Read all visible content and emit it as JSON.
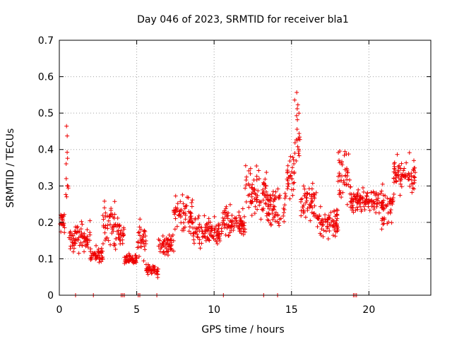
{
  "chart_data": {
    "type": "scatter",
    "title": "Day 046 of 2023, SRMTID for receiver bla1",
    "xlabel": "GPS time / hours",
    "ylabel": "SRMTID / TECUs",
    "xlim": [
      0,
      24
    ],
    "ylim": [
      0,
      0.7
    ],
    "x_ticks": [
      "0",
      "5",
      "10",
      "15",
      "20"
    ],
    "y_ticks": [
      "0",
      "0.1",
      "0.2",
      "0.3",
      "0.4",
      "0.5",
      "0.6",
      "0.7"
    ],
    "grid": true,
    "marker": "plus",
    "color": "#ee0000",
    "segments": [
      {
        "x0": 0.0,
        "x1": 0.4,
        "mean": 0.2,
        "spread": 0.06
      },
      {
        "x0": 0.4,
        "x1": 0.6,
        "mean": 0.35,
        "spread": 0.18
      },
      {
        "x0": 0.6,
        "x1": 1.0,
        "mean": 0.15,
        "spread": 0.05
      },
      {
        "x0": 1.0,
        "x1": 2.0,
        "mean": 0.16,
        "spread": 0.07
      },
      {
        "x0": 2.0,
        "x1": 2.8,
        "mean": 0.11,
        "spread": 0.04
      },
      {
        "x0": 2.8,
        "x1": 3.6,
        "mean": 0.2,
        "spread": 0.1
      },
      {
        "x0": 3.6,
        "x1": 4.2,
        "mean": 0.17,
        "spread": 0.07
      },
      {
        "x0": 4.2,
        "x1": 5.0,
        "mean": 0.1,
        "spread": 0.03
      },
      {
        "x0": 5.0,
        "x1": 5.6,
        "mean": 0.15,
        "spread": 0.08
      },
      {
        "x0": 5.6,
        "x1": 6.4,
        "mean": 0.07,
        "spread": 0.03
      },
      {
        "x0": 6.4,
        "x1": 7.4,
        "mean": 0.14,
        "spread": 0.05
      },
      {
        "x0": 7.4,
        "x1": 8.6,
        "mean": 0.22,
        "spread": 0.09
      },
      {
        "x0": 8.6,
        "x1": 10.4,
        "mean": 0.17,
        "spread": 0.07
      },
      {
        "x0": 10.4,
        "x1": 12.0,
        "mean": 0.2,
        "spread": 0.07
      },
      {
        "x0": 12.0,
        "x1": 13.4,
        "mean": 0.28,
        "spread": 0.11
      },
      {
        "x0": 13.4,
        "x1": 14.6,
        "mean": 0.24,
        "spread": 0.09
      },
      {
        "x0": 14.6,
        "x1": 15.2,
        "mean": 0.33,
        "spread": 0.1
      },
      {
        "x0": 15.2,
        "x1": 15.6,
        "mean": 0.45,
        "spread": 0.17
      },
      {
        "x0": 15.6,
        "x1": 16.6,
        "mean": 0.26,
        "spread": 0.1
      },
      {
        "x0": 16.6,
        "x1": 18.0,
        "mean": 0.2,
        "spread": 0.08
      },
      {
        "x0": 18.0,
        "x1": 18.8,
        "mean": 0.33,
        "spread": 0.14
      },
      {
        "x0": 18.8,
        "x1": 20.6,
        "mean": 0.26,
        "spread": 0.06
      },
      {
        "x0": 20.6,
        "x1": 21.6,
        "mean": 0.24,
        "spread": 0.08
      },
      {
        "x0": 21.6,
        "x1": 23.0,
        "mean": 0.33,
        "spread": 0.08
      }
    ],
    "zero_points": [
      1.05,
      2.2,
      4.0,
      4.1,
      4.2,
      5.1,
      5.2,
      6.3,
      10.6,
      13.2,
      14.1,
      19.0,
      19.1,
      19.2
    ]
  }
}
